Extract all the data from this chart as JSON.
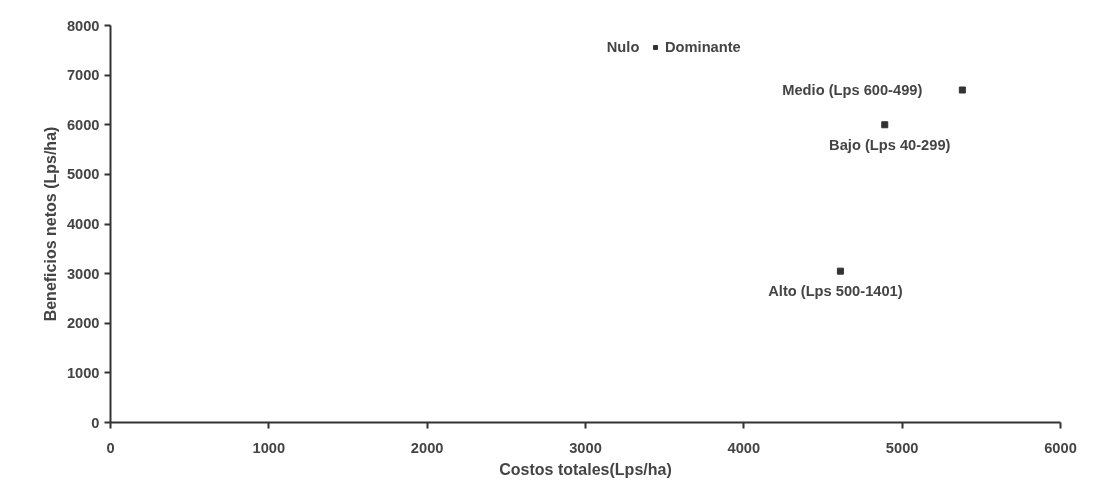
{
  "chart_data": {
    "type": "scatter",
    "xlabel": "Costos totales(Lps/ha)",
    "ylabel": "Beneficios netos (Lps/ha)",
    "x": [
      5380,
      4890,
      4610
    ],
    "series": [
      {
        "name": "Dominante",
        "color": "#333333",
        "values": [
          6700,
          6000,
          3050
        ]
      }
    ],
    "marker": "square",
    "legend": "top",
    "grid": false,
    "xlim": [
      0,
      6000
    ],
    "xticks": [
      0,
      1000,
      2000,
      3000,
      4000,
      5000,
      6000
    ],
    "ylim": [
      0,
      8000
    ],
    "yticks": [
      0,
      1000,
      2000,
      3000,
      4000,
      5000,
      6000,
      7000,
      8000
    ],
    "annotations": [
      "Nulo",
      {
        "text": "Medio (Lps 600-499)",
        "x": 5380,
        "y": 6700
      },
      {
        "text": "Bajo (Lps 40-299)",
        "x": 4890,
        "y": 6000
      },
      {
        "text": "Alto (Lps 500-1401)",
        "x": 4610,
        "y": 3050
      }
    ]
  }
}
